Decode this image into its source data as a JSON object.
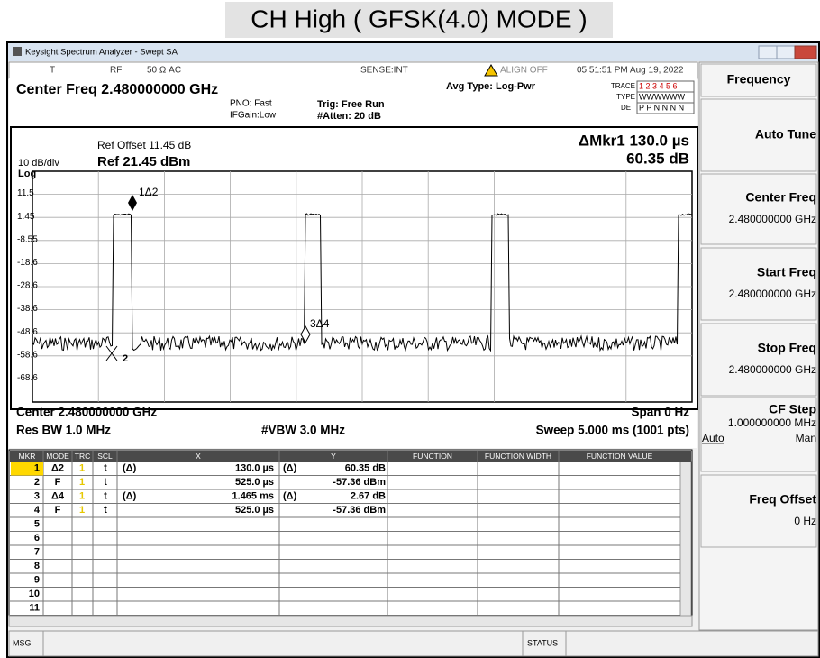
{
  "title": "CH High ( GFSK(4.0) MODE )",
  "window": {
    "title": "Keysight Spectrum Analyzer - Swept SA",
    "status": {
      "mode": "T",
      "input": "RF",
      "impedance": "50 Ω  AC",
      "sense": "SENSE:INT",
      "align": "ALIGN OFF",
      "time": "05:51:51 PM Aug 19, 2022"
    }
  },
  "header": {
    "center_freq": "Center Freq 2.480000000 GHz",
    "pno": "PNO: Fast",
    "ifgain": "IFGain:Low",
    "trig": "Trig: Free Run",
    "atten": "#Atten: 20 dB",
    "avg_type": "Avg Type: Log-Pwr",
    "trace": {
      "label": "TRACE",
      "value": "1 2 3 4 5 6"
    },
    "type": {
      "label": "TYPE",
      "value": "WWWWWW"
    },
    "det": {
      "label": "DET",
      "value": "P P N N N N"
    }
  },
  "plot": {
    "ref_offset": "Ref Offset 11.45 dB",
    "scale": "10 dB/div",
    "ref_level": "Ref 21.45 dBm",
    "scale_type": "Log",
    "marker_readout": [
      "ΔMkr1 130.0 µs",
      "60.35 dB"
    ],
    "y_labels": [
      "11.5",
      "1.45",
      "-8.55",
      "-18.6",
      "-28.6",
      "-38.6",
      "-48.6",
      "-58.6",
      "-68.6"
    ],
    "marker_labels": [
      "1Δ2",
      "2",
      "3Δ4"
    ],
    "center": "Center 2.480000000 GHz",
    "span": "Span 0 Hz",
    "rbw": "Res BW 1.0 MHz",
    "vbw": "#VBW 3.0 MHz",
    "sweep": "Sweep  5.000 ms (1001 pts)"
  },
  "marker_table": {
    "headers": [
      "MKR",
      "MODE",
      "TRC",
      "SCL",
      "X",
      "Y",
      "FUNCTION",
      "FUNCTION WIDTH",
      "FUNCTION VALUE"
    ],
    "rows": [
      {
        "mkr": "1",
        "mode": "Δ2",
        "trc": "1",
        "scl": "t",
        "x_ref": "(Δ)",
        "x": "130.0 µs",
        "y_ref": "(Δ)",
        "y": "60.35 dB"
      },
      {
        "mkr": "2",
        "mode": "F",
        "trc": "1",
        "scl": "t",
        "x": "525.0 µs",
        "y": "-57.36 dBm"
      },
      {
        "mkr": "3",
        "mode": "Δ4",
        "trc": "1",
        "scl": "t",
        "x_ref": "(Δ)",
        "x": "1.465 ms",
        "y_ref": "(Δ)",
        "y": "2.67 dB"
      },
      {
        "mkr": "4",
        "mode": "F",
        "trc": "1",
        "scl": "t",
        "x": "525.0 µs",
        "y": "-57.36 dBm"
      },
      {
        "mkr": "5"
      },
      {
        "mkr": "6"
      },
      {
        "mkr": "7"
      },
      {
        "mkr": "8"
      },
      {
        "mkr": "9"
      },
      {
        "mkr": "10"
      },
      {
        "mkr": "11"
      }
    ]
  },
  "softkeys": [
    {
      "label": "Frequency"
    },
    {
      "label": "Auto Tune"
    },
    {
      "label": "Center Freq",
      "value": "2.480000000 GHz"
    },
    {
      "label": "Start Freq",
      "value": "2.480000000 GHz"
    },
    {
      "label": "Stop Freq",
      "value": "2.480000000 GHz"
    },
    {
      "label": "CF Step",
      "value": "1.000000000 MHz",
      "options": [
        "Auto",
        "Man"
      ]
    },
    {
      "label": "Freq Offset",
      "value": "0 Hz"
    }
  ],
  "footer": {
    "msg": "MSG",
    "status": "STATUS"
  }
}
